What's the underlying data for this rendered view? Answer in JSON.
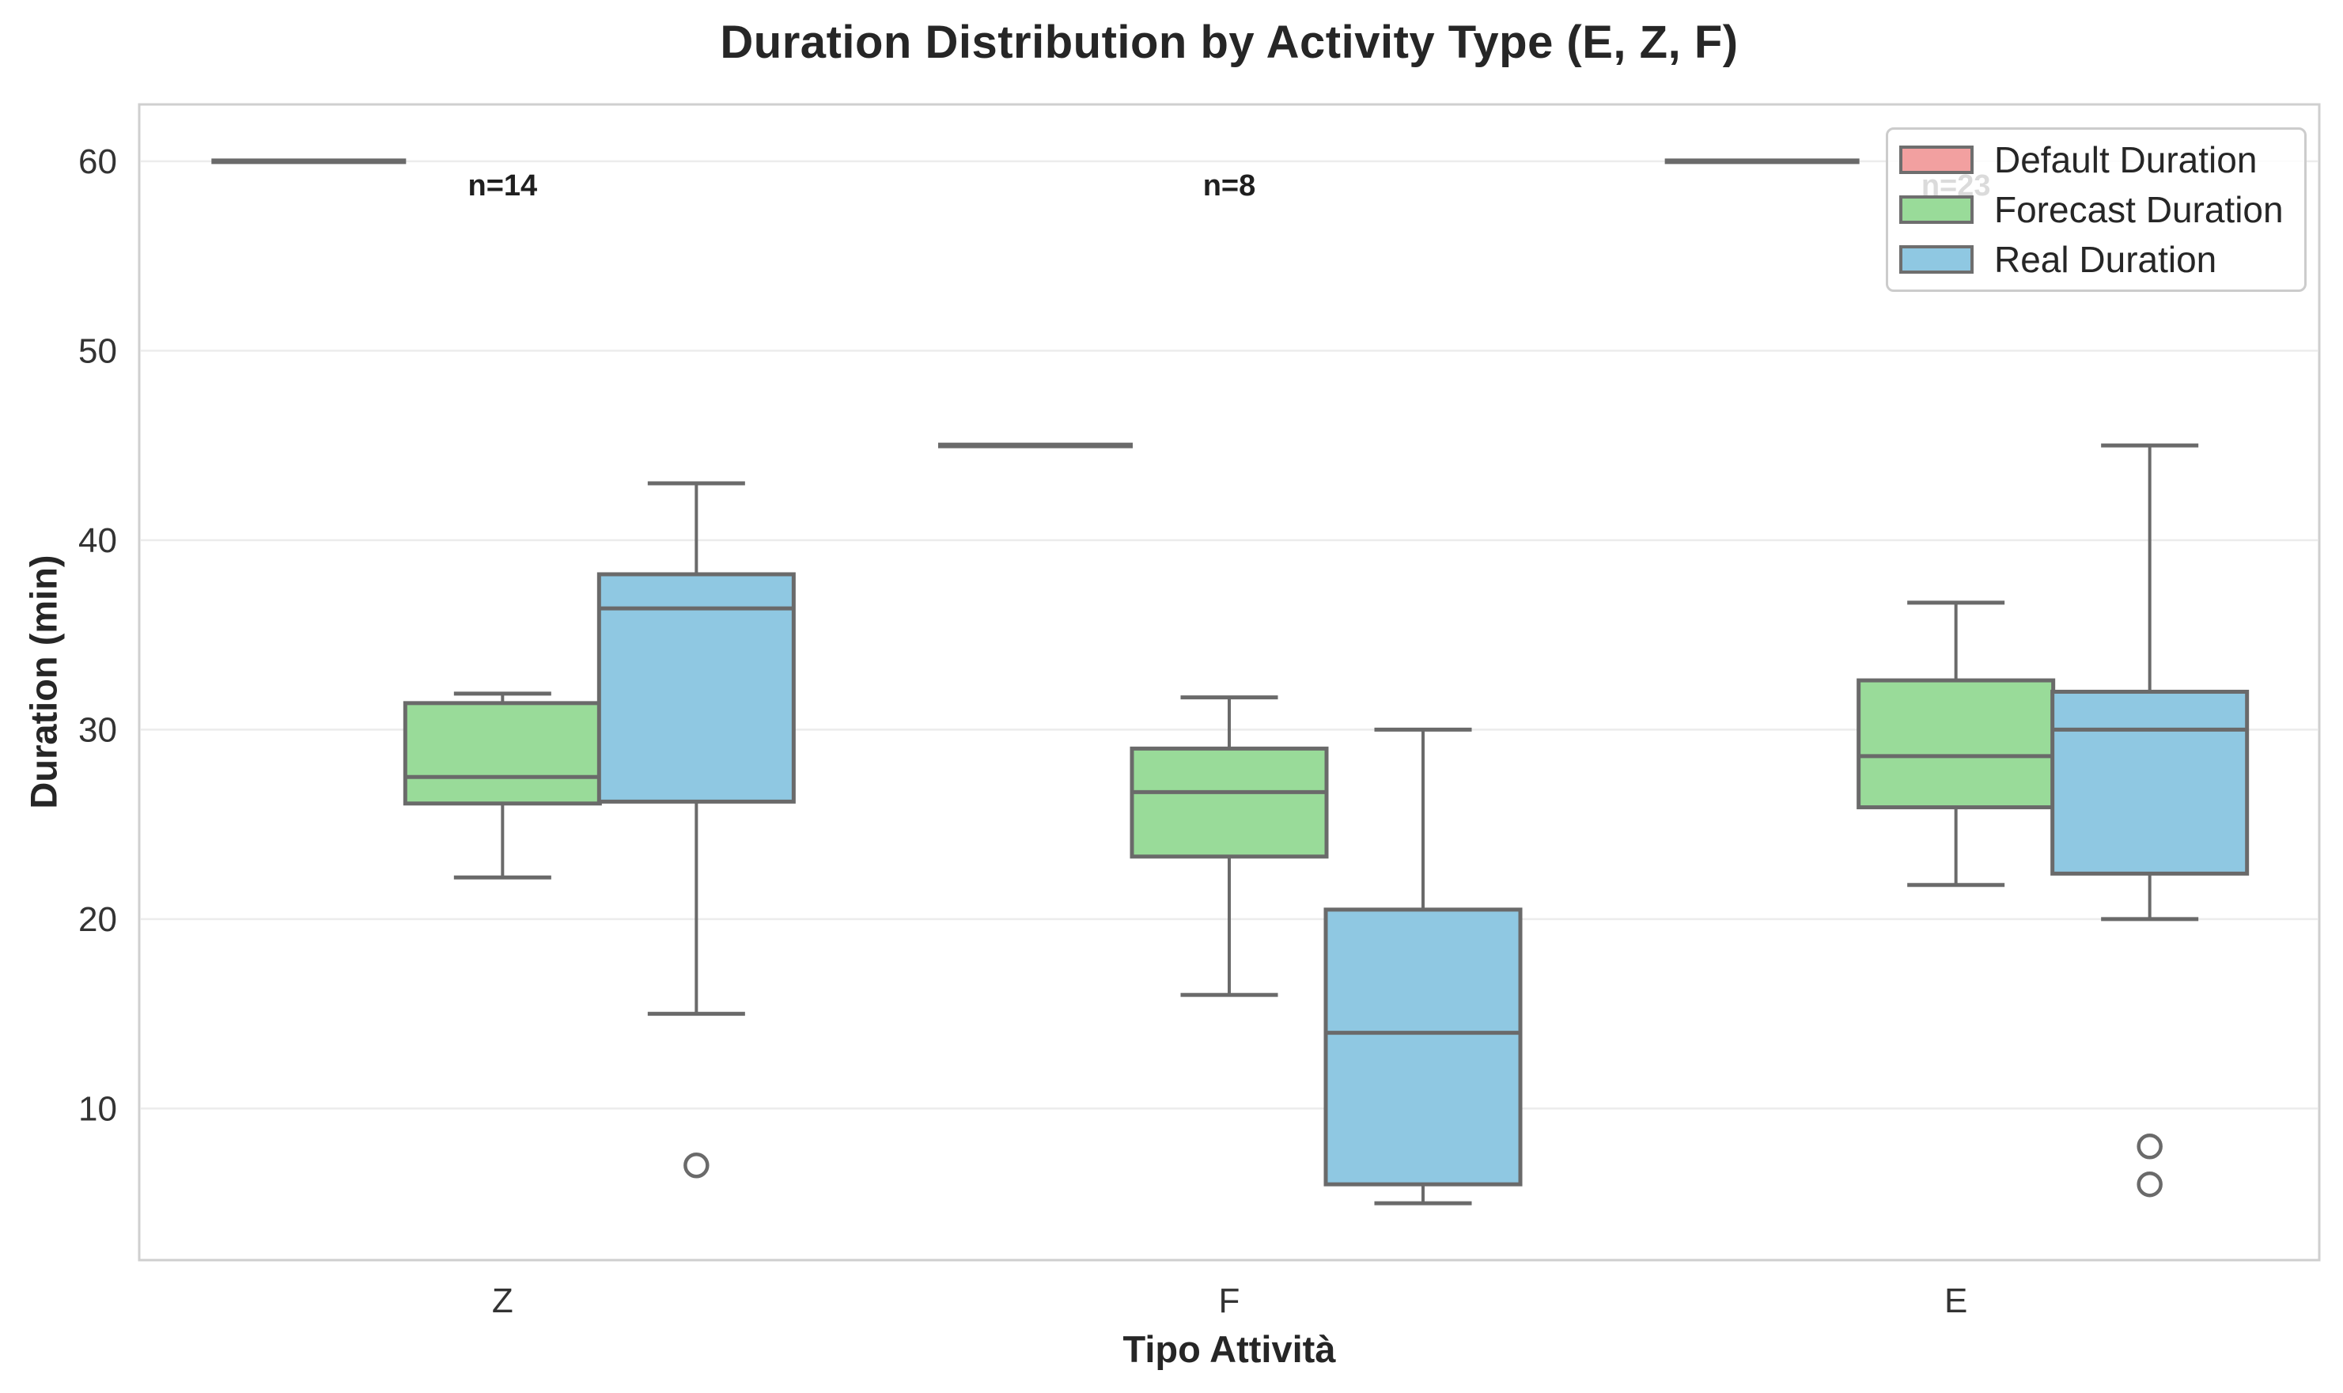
{
  "chart_data": {
    "type": "box",
    "title": "Duration Distribution by Activity Type (E, Z, F)",
    "xlabel": "Tipo Attività",
    "ylabel": "Duration (min)",
    "categories": [
      "Z",
      "F",
      "E"
    ],
    "yticks": [
      10,
      20,
      30,
      40,
      50,
      60
    ],
    "ylim": [
      2,
      63
    ],
    "grid": "horizontal",
    "legend": {
      "position": "upper right",
      "entries": [
        {
          "label": "Default Duration",
          "color": "#f2a0a0"
        },
        {
          "label": "Forecast Duration",
          "color": "#99db99"
        },
        {
          "label": "Real Duration",
          "color": "#8fc8e2"
        }
      ]
    },
    "annotations": [
      {
        "category": "Z",
        "label": "n=14",
        "count": 14,
        "y": 58.5
      },
      {
        "category": "F",
        "label": "n=8",
        "count": 8,
        "y": 58.5
      },
      {
        "category": "E",
        "label": "n=23",
        "count": 23,
        "y": 58.5
      }
    ],
    "series": [
      {
        "name": "Default Duration",
        "color": "#f2a0a0",
        "stats": [
          {
            "min": 60,
            "q1": 60,
            "median": 60,
            "q3": 60,
            "max": 60,
            "outliers": []
          },
          {
            "min": 45,
            "q1": 45,
            "median": 45,
            "q3": 45,
            "max": 45,
            "outliers": []
          },
          {
            "min": 60,
            "q1": 60,
            "median": 60,
            "q3": 60,
            "max": 60,
            "outliers": []
          }
        ]
      },
      {
        "name": "Forecast Duration",
        "color": "#99db99",
        "stats": [
          {
            "min": 22.2,
            "q1": 26.1,
            "median": 27.5,
            "q3": 31.4,
            "max": 31.9,
            "outliers": []
          },
          {
            "min": 16,
            "q1": 23.3,
            "median": 26.7,
            "q3": 29,
            "max": 31.7,
            "outliers": []
          },
          {
            "min": 21.8,
            "q1": 25.9,
            "median": 28.6,
            "q3": 32.6,
            "max": 36.7,
            "outliers": []
          }
        ]
      },
      {
        "name": "Real Duration",
        "color": "#8fc8e2",
        "stats": [
          {
            "min": 15,
            "q1": 26.2,
            "median": 36.4,
            "q3": 38.2,
            "max": 43,
            "outliers": [
              7
            ]
          },
          {
            "min": 5,
            "q1": 6,
            "median": 14,
            "q3": 20.5,
            "max": 30,
            "outliers": []
          },
          {
            "min": 20,
            "q1": 22.4,
            "median": 30,
            "q3": 32,
            "max": 45,
            "outliers": [
              8,
              6
            ]
          }
        ]
      }
    ]
  }
}
